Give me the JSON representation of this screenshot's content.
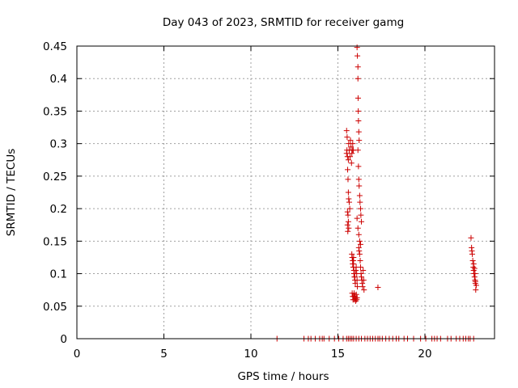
{
  "chart_data": {
    "type": "scatter",
    "title": "Day 043 of 2023, SRMTID for receiver gamg",
    "xlabel": "GPS time / hours",
    "ylabel": "SRMTID / TECUs",
    "xlim": [
      0,
      24
    ],
    "ylim": [
      0,
      0.45
    ],
    "xticks": [
      0,
      5,
      10,
      15,
      20
    ],
    "xtick_labels": [
      "0",
      "5",
      "10",
      "15",
      "20"
    ],
    "yticks": [
      0,
      0.05,
      0.1,
      0.15,
      0.2,
      0.25,
      0.3,
      0.35,
      0.4,
      0.45
    ],
    "ytick_labels": [
      "0",
      "0.05",
      "0.1",
      "0.15",
      "0.2",
      "0.25",
      "0.3",
      "0.35",
      "0.4",
      "0.45"
    ],
    "grid": true,
    "marker": "+",
    "color": "#cc0000",
    "series": [
      {
        "name": "SRMTID",
        "x": [
          11.5,
          13.05,
          13.3,
          13.45,
          13.7,
          13.95,
          14.1,
          14.2,
          14.5,
          14.8,
          15.05,
          15.3,
          15.5,
          15.6,
          15.7,
          15.8,
          15.9,
          16.05,
          16.2,
          16.35,
          16.55,
          16.7,
          16.85,
          17.0,
          17.15,
          17.3,
          17.4,
          17.55,
          17.75,
          17.95,
          18.15,
          18.35,
          18.5,
          18.8,
          19.0,
          19.35,
          19.75,
          20.05,
          20.4,
          20.55,
          20.7,
          20.9,
          21.3,
          21.5,
          21.8,
          22.0,
          22.2,
          22.35,
          22.5,
          22.6,
          22.8,
          15.5,
          15.52,
          15.55,
          15.6,
          15.62,
          15.65,
          15.7,
          15.72,
          15.75,
          15.78,
          15.8,
          15.83,
          15.85,
          15.88,
          15.5,
          15.53,
          15.56,
          15.58,
          15.6,
          15.62,
          15.65,
          15.68,
          15.55,
          15.58,
          15.6,
          15.62,
          15.55,
          15.57,
          15.8,
          15.82,
          15.85,
          15.88,
          15.9,
          15.92,
          15.95,
          15.98,
          16.0,
          16.03,
          16.05,
          16.08,
          16.1,
          16.12,
          15.82,
          15.85,
          15.87,
          15.9,
          15.93,
          15.95,
          15.97,
          16.0,
          16.02,
          16.05,
          16.08,
          16.1,
          15.85,
          15.88,
          15.9,
          15.92,
          15.95,
          15.97,
          16.1,
          16.12,
          16.15,
          16.15,
          16.16,
          16.17,
          16.18,
          16.2,
          16.22,
          16.15,
          16.18,
          16.2,
          16.22,
          16.25,
          16.27,
          16.3,
          16.32,
          16.35,
          16.2,
          16.22,
          16.25,
          16.28,
          16.3,
          16.33,
          16.35,
          16.38,
          16.4,
          16.42,
          16.45,
          16.48,
          16.5,
          16.1,
          16.15,
          16.2,
          16.25,
          16.3,
          17.3,
          22.65,
          22.68,
          22.7,
          22.72,
          22.75,
          22.78,
          22.8,
          22.82,
          22.85,
          22.88,
          22.9,
          22.92,
          22.8,
          22.85,
          22.88,
          22.9,
          22.95
        ],
        "y": [
          0,
          0,
          0,
          0,
          0,
          0,
          0,
          0,
          0,
          0,
          0,
          0,
          0,
          0,
          0,
          0,
          0,
          0,
          0,
          0,
          0,
          0,
          0,
          0,
          0,
          0,
          0,
          0,
          0,
          0,
          0,
          0,
          0,
          0,
          0,
          0,
          0,
          0,
          0,
          0,
          0,
          0,
          0,
          0,
          0,
          0,
          0,
          0,
          0,
          0,
          0,
          0.285,
          0.29,
          0.28,
          0.275,
          0.3,
          0.29,
          0.28,
          0.305,
          0.295,
          0.27,
          0.285,
          0.29,
          0.3,
          0.29,
          0.32,
          0.31,
          0.26,
          0.245,
          0.225,
          0.215,
          0.21,
          0.2,
          0.195,
          0.19,
          0.18,
          0.17,
          0.175,
          0.165,
          0.13,
          0.125,
          0.12,
          0.11,
          0.115,
          0.1,
          0.095,
          0.09,
          0.085,
          0.105,
          0.11,
          0.1,
          0.09,
          0.08,
          0.07,
          0.065,
          0.06,
          0.065,
          0.07,
          0.06,
          0.065,
          0.062,
          0.058,
          0.068,
          0.06,
          0.063,
          0.115,
          0.12,
          0.125,
          0.105,
          0.1,
          0.095,
          0.448,
          0.435,
          0.418,
          0.4,
          0.37,
          0.35,
          0.335,
          0.318,
          0.305,
          0.29,
          0.265,
          0.245,
          0.235,
          0.22,
          0.21,
          0.2,
          0.19,
          0.18,
          0.14,
          0.135,
          0.13,
          0.12,
          0.11,
          0.1,
          0.095,
          0.09,
          0.085,
          0.08,
          0.105,
          0.09,
          0.075,
          0.185,
          0.17,
          0.16,
          0.15,
          0.145,
          0.079,
          0.155,
          0.14,
          0.135,
          0.13,
          0.12,
          0.11,
          0.105,
          0.1,
          0.095,
          0.09,
          0.085,
          0.075,
          0.115,
          0.108,
          0.1,
          0.088,
          0.082
        ]
      }
    ]
  }
}
